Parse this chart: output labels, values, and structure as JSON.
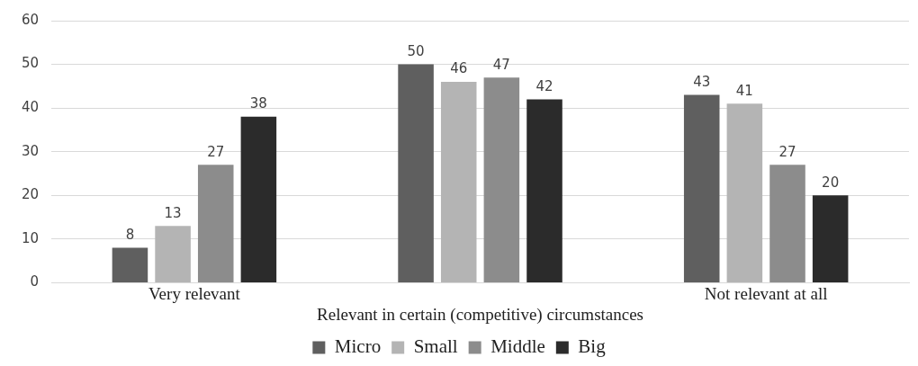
{
  "chart_data": {
    "type": "bar",
    "categories": [
      "Very relevant",
      "Relevant in certain (competitive) circumstances",
      "Not relevant at all"
    ],
    "series": [
      {
        "name": "Micro",
        "color": "#5f5f5f",
        "values": [
          8,
          50,
          43
        ]
      },
      {
        "name": "Small",
        "color": "#b4b4b4",
        "values": [
          13,
          46,
          41
        ]
      },
      {
        "name": "Middle",
        "color": "#8c8c8c",
        "values": [
          27,
          47,
          27
        ]
      },
      {
        "name": "Big",
        "color": "#2b2b2b",
        "values": [
          38,
          42,
          20
        ]
      }
    ],
    "ylim": [
      0,
      60
    ],
    "yticks": [
      0,
      10,
      20,
      30,
      40,
      50,
      60
    ],
    "grid": "y",
    "legend": "bottom",
    "data_labels": true
  }
}
